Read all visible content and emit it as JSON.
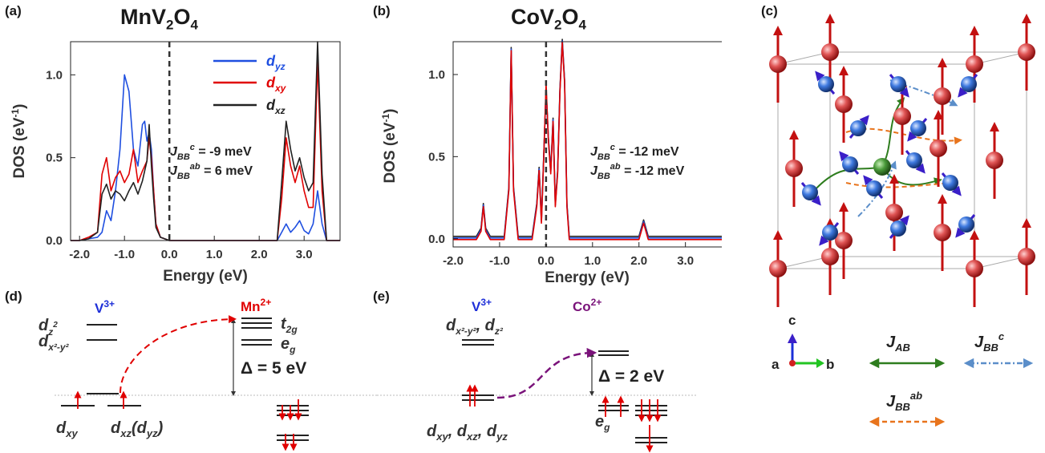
{
  "panels": {
    "a": {
      "label": "(a)",
      "title": "MnV",
      "title_sub1": "2",
      "title_mid": "O",
      "title_sub2": "4"
    },
    "b": {
      "label": "(b)",
      "title": "CoV",
      "title_sub1": "2",
      "title_mid": "O",
      "title_sub2": "4"
    },
    "c": {
      "label": "(c)"
    },
    "d": {
      "label": "(d)"
    },
    "e": {
      "label": "(e)"
    }
  },
  "legend_a": {
    "dyz": "d",
    "dyz_sub": "yz",
    "dxy": "d",
    "dxy_sub": "xy",
    "dxz": "d",
    "dxz_sub": "xz"
  },
  "j_a": {
    "c": "J",
    "c_sub": "BB",
    "c_sup": "c",
    "c_val": " = -9 meV",
    "ab": "J",
    "ab_sub": "BB",
    "ab_sup": "ab",
    "ab_val": " = 6 meV"
  },
  "j_b": {
    "c": "J",
    "c_sub": "BB",
    "c_sup": "c",
    "c_val": " = -12 meV",
    "ab": "J",
    "ab_sub": "BB",
    "ab_sup": "ab",
    "ab_val": " = -12 meV"
  },
  "chart_data": [
    {
      "type": "line",
      "title": "MnV2O4",
      "xlabel": "Energy (eV)",
      "ylabel": "DOS (eV-1)",
      "xlim": [
        -2.2,
        3.8
      ],
      "ylim": [
        0,
        1.2
      ],
      "xticks": [
        "-2.0",
        "-1.0",
        "0.0",
        "1.0",
        "2.0",
        "3.0"
      ],
      "yticks": [
        "0.0",
        "0.5",
        "1.0"
      ],
      "legend": "top-right",
      "series": [
        {
          "name": "dyz",
          "color": "#1f4fe0",
          "x": [
            -2.2,
            -2.0,
            -1.8,
            -1.6,
            -1.5,
            -1.4,
            -1.3,
            -1.2,
            -1.1,
            -1.0,
            -0.9,
            -0.8,
            -0.7,
            -0.6,
            -0.55,
            -0.5,
            -0.45,
            -0.4,
            -0.35,
            -0.3,
            -0.2,
            0.0,
            1.0,
            2.4,
            2.5,
            2.6,
            2.7,
            2.8,
            2.9,
            3.0,
            3.1,
            3.2,
            3.3,
            3.4,
            3.5,
            3.8
          ],
          "y": [
            0.0,
            0.0,
            0.01,
            0.02,
            0.05,
            0.18,
            0.12,
            0.3,
            0.55,
            1.0,
            0.9,
            0.55,
            0.45,
            0.7,
            0.72,
            0.6,
            0.65,
            0.55,
            0.3,
            0.1,
            0.02,
            0.0,
            0.0,
            0.0,
            0.05,
            0.1,
            0.05,
            0.08,
            0.12,
            0.06,
            0.04,
            0.1,
            0.3,
            0.1,
            0.0,
            0.0
          ]
        },
        {
          "name": "dxy",
          "color": "#e00000",
          "x": [
            -2.2,
            -2.0,
            -1.8,
            -1.6,
            -1.5,
            -1.4,
            -1.3,
            -1.2,
            -1.1,
            -1.0,
            -0.9,
            -0.8,
            -0.7,
            -0.6,
            -0.5,
            -0.45,
            -0.4,
            -0.35,
            -0.3,
            -0.2,
            0.0,
            1.0,
            2.4,
            2.5,
            2.6,
            2.7,
            2.8,
            2.9,
            3.0,
            3.1,
            3.2,
            3.3,
            3.4,
            3.5,
            3.8
          ],
          "y": [
            0.0,
            0.0,
            0.02,
            0.05,
            0.4,
            0.5,
            0.3,
            0.38,
            0.42,
            0.35,
            0.4,
            0.55,
            0.35,
            0.42,
            0.48,
            0.62,
            0.5,
            0.3,
            0.1,
            0.02,
            0.0,
            0.0,
            0.0,
            0.25,
            0.62,
            0.45,
            0.35,
            0.45,
            0.3,
            0.2,
            0.2,
            1.08,
            0.3,
            0.0,
            0.0
          ]
        },
        {
          "name": "dxz",
          "color": "#222222",
          "x": [
            -2.2,
            -2.0,
            -1.8,
            -1.6,
            -1.5,
            -1.4,
            -1.3,
            -1.2,
            -1.1,
            -1.0,
            -0.9,
            -0.8,
            -0.7,
            -0.6,
            -0.5,
            -0.45,
            -0.4,
            -0.35,
            -0.3,
            -0.2,
            0.0,
            1.0,
            2.4,
            2.5,
            2.6,
            2.7,
            2.8,
            2.9,
            3.0,
            3.1,
            3.2,
            3.3,
            3.4,
            3.5,
            3.8
          ],
          "y": [
            0.0,
            0.0,
            0.01,
            0.05,
            0.28,
            0.34,
            0.25,
            0.3,
            0.28,
            0.24,
            0.3,
            0.35,
            0.28,
            0.36,
            0.48,
            0.7,
            0.45,
            0.25,
            0.08,
            0.02,
            0.0,
            0.0,
            0.0,
            0.35,
            0.72,
            0.55,
            0.42,
            0.5,
            0.38,
            0.3,
            0.35,
            1.2,
            0.4,
            0.0,
            0.0
          ]
        }
      ]
    },
    {
      "type": "line",
      "title": "CoV2O4",
      "xlabel": "Energy (eV)",
      "ylabel": "DOS (eV-1)",
      "xlim": [
        -2.0,
        3.8
      ],
      "ylim": [
        -0.05,
        1.2
      ],
      "xticks": [
        "-2.0",
        "-1.0",
        "0.0",
        "1.0",
        "2.0",
        "3.0"
      ],
      "yticks": [
        "0.0",
        "0.5",
        "1.0"
      ],
      "series": [
        {
          "name": "dxz",
          "color": "#222222",
          "x": [
            -2.0,
            -1.5,
            -1.4,
            -1.35,
            -1.3,
            -1.2,
            -0.9,
            -0.8,
            -0.75,
            -0.7,
            -0.6,
            -0.3,
            -0.2,
            -0.15,
            -0.1,
            -0.05,
            0.0,
            0.05,
            0.1,
            0.15,
            0.2,
            0.25,
            0.3,
            0.35,
            0.4,
            0.45,
            0.5,
            1.0,
            2.0,
            2.1,
            2.2,
            3.8
          ],
          "y": [
            0.0,
            0.0,
            0.05,
            0.2,
            0.05,
            0.0,
            0.0,
            0.3,
            1.15,
            0.3,
            0.0,
            0.0,
            0.2,
            0.42,
            0.1,
            0.5,
            0.9,
            0.6,
            0.4,
            0.72,
            0.2,
            0.4,
            0.9,
            1.2,
            0.95,
            0.2,
            0.0,
            0.0,
            0.0,
            0.1,
            0.0,
            0.0
          ]
        },
        {
          "name": "dyz",
          "color": "#1f4fe0",
          "x": [
            -2.0,
            -1.5,
            -1.4,
            -1.35,
            -1.3,
            -1.2,
            -0.9,
            -0.8,
            -0.75,
            -0.7,
            -0.6,
            -0.3,
            -0.2,
            -0.15,
            -0.1,
            -0.05,
            0.0,
            0.05,
            0.1,
            0.15,
            0.2,
            0.25,
            0.3,
            0.35,
            0.4,
            0.45,
            0.5,
            1.0,
            2.0,
            2.1,
            2.2,
            3.8
          ],
          "y": [
            0.0,
            0.0,
            0.05,
            0.2,
            0.05,
            0.0,
            0.0,
            0.3,
            1.15,
            0.3,
            0.0,
            0.0,
            0.2,
            0.42,
            0.1,
            0.5,
            0.9,
            0.6,
            0.4,
            0.72,
            0.2,
            0.4,
            0.9,
            1.2,
            0.95,
            0.2,
            0.0,
            0.0,
            0.0,
            0.1,
            0.0,
            0.0
          ]
        },
        {
          "name": "dxy",
          "color": "#e00000",
          "x": [
            -2.0,
            -1.5,
            -1.4,
            -1.35,
            -1.3,
            -1.2,
            -0.9,
            -0.8,
            -0.75,
            -0.7,
            -0.6,
            -0.3,
            -0.2,
            -0.15,
            -0.1,
            -0.05,
            0.0,
            0.05,
            0.1,
            0.15,
            0.2,
            0.25,
            0.3,
            0.35,
            0.4,
            0.45,
            0.5,
            1.0,
            2.0,
            2.1,
            2.2,
            3.8
          ],
          "y": [
            0.0,
            0.0,
            0.05,
            0.2,
            0.05,
            0.0,
            0.0,
            0.3,
            1.15,
            0.3,
            0.0,
            0.0,
            0.2,
            0.42,
            0.1,
            0.5,
            0.95,
            0.6,
            0.4,
            0.72,
            0.2,
            0.4,
            0.9,
            1.2,
            0.95,
            0.2,
            0.0,
            0.0,
            0.0,
            0.1,
            0.0,
            0.0
          ]
        }
      ]
    }
  ],
  "axis_a": {
    "xlabel": "Energy (eV)",
    "ylabel": "DOS (eV",
    "ylabel_sup": "-1",
    "ylabel_end": ")"
  },
  "axis_b": {
    "xlabel": "Energy (eV)",
    "ylabel": "DOS (eV",
    "ylabel_sup": "-1",
    "ylabel_end": ")"
  },
  "panel_c": {
    "axes": {
      "c": "c",
      "a": "a",
      "b": "b"
    },
    "legend": {
      "jab": "J",
      "jab_sub": "AB",
      "jbbc": "J",
      "jbbc_sub": "BB",
      "jbbc_sup": "c",
      "jbbab": "J",
      "jbbab_sub": "BB",
      "jbbab_sup": "ab"
    },
    "colors": {
      "jab": "#2e7d1e",
      "jbbc": "#5b8ec9",
      "jbbab": "#e8741c",
      "a_site": "#d94b4b",
      "b_site": "#3b6fd6"
    }
  },
  "panel_d": {
    "v_label": "V",
    "v_sup": "3+",
    "mn_label": "Mn",
    "mn_sup": "2+",
    "dz2": "d",
    "dz2_sub": "z",
    "dz2_sup": "2",
    "dx2y2": "d",
    "dx2y2_sub": "x²-y²",
    "t2g": "t",
    "t2g_sub": "2g",
    "eg": "e",
    "eg_sub": "g",
    "delta": "Δ = 5 eV",
    "dxy": "d",
    "dxy_sub": "xy",
    "dxz": "d",
    "dxz_sub": "xz",
    "dyz_paren": "(d",
    "dyz_sub": "yz",
    "dyz_close": ")"
  },
  "panel_e": {
    "v_label": "V",
    "v_sup": "3+",
    "co_label": "Co",
    "co_sup": "2+",
    "dx2y2_dz2": "d",
    "dx2y2_sub": "x²-y²",
    "comma": ", d",
    "dz2_sub": "z²",
    "delta": "Δ = 2 eV",
    "eg": "e",
    "eg_sub": "g",
    "bottom": "d",
    "bottom_sub1": "xy",
    "bottom_mid1": ", d",
    "bottom_sub2": "xz",
    "bottom_mid2": ", d",
    "bottom_sub3": "yz"
  }
}
